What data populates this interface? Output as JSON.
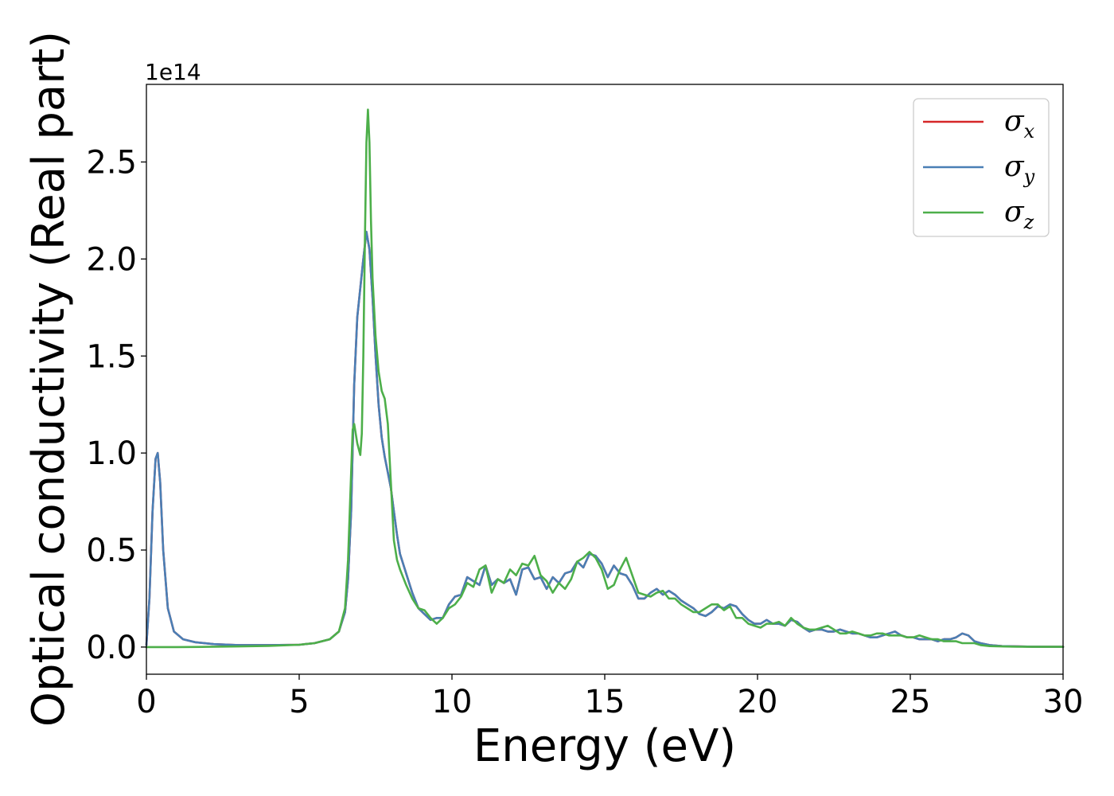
{
  "chart_data": {
    "type": "line",
    "xlabel": "Energy (eV)",
    "ylabel": "Optical conductivity (Real part)",
    "y_offset_label": "1e14",
    "xlim": [
      0,
      30
    ],
    "ylim": [
      -0.14,
      2.9
    ],
    "x_ticks": [
      0,
      5,
      10,
      15,
      20,
      25,
      30
    ],
    "x_tick_labels": [
      "0",
      "5",
      "10",
      "15",
      "20",
      "25",
      "30"
    ],
    "y_ticks": [
      0.0,
      0.5,
      1.0,
      1.5,
      2.0,
      2.5
    ],
    "y_tick_labels": [
      "0.0",
      "0.5",
      "1.0",
      "1.5",
      "2.0",
      "2.5"
    ],
    "grid": false,
    "legend_position": "top-right",
    "series": [
      {
        "name": "σx",
        "name_base": "σ",
        "name_sub": "x",
        "color": "#d62728",
        "x": [
          0,
          0.1,
          0.2,
          0.3,
          0.37,
          0.45,
          0.55,
          0.7,
          0.9,
          1.2,
          1.6,
          2.2,
          3,
          4,
          5,
          5.5,
          6,
          6.3,
          6.5,
          6.6,
          6.7,
          6.8,
          6.9,
          7.0,
          7.1,
          7.2,
          7.3,
          7.4,
          7.5,
          7.6,
          7.7,
          7.8,
          7.9,
          8.0,
          8.1,
          8.2,
          8.3,
          8.5,
          8.7,
          8.9,
          9.1,
          9.3,
          9.5,
          9.7,
          9.9,
          10.1,
          10.3,
          10.5,
          10.7,
          10.9,
          11.1,
          11.3,
          11.5,
          11.7,
          11.9,
          12.1,
          12.3,
          12.5,
          12.7,
          12.9,
          13.1,
          13.3,
          13.5,
          13.7,
          13.9,
          14.1,
          14.3,
          14.5,
          14.7,
          14.9,
          15.1,
          15.3,
          15.5,
          15.7,
          15.9,
          16.1,
          16.3,
          16.5,
          16.7,
          16.9,
          17.1,
          17.3,
          17.5,
          17.7,
          17.9,
          18.1,
          18.3,
          18.5,
          18.7,
          18.9,
          19.1,
          19.3,
          19.5,
          19.7,
          19.9,
          20.1,
          20.3,
          20.5,
          20.7,
          20.9,
          21.1,
          21.3,
          21.5,
          21.7,
          21.9,
          22.1,
          22.3,
          22.5,
          22.7,
          22.9,
          23.1,
          23.3,
          23.5,
          23.7,
          23.9,
          24.1,
          24.3,
          24.5,
          24.7,
          24.9,
          25.1,
          25.3,
          25.5,
          25.7,
          25.9,
          26.1,
          26.3,
          26.5,
          26.7,
          26.9,
          27.1,
          27.3,
          27.6,
          28,
          28.5,
          29,
          30
        ],
        "values": [
          0.01,
          0.25,
          0.7,
          0.97,
          1.0,
          0.85,
          0.5,
          0.2,
          0.08,
          0.04,
          0.025,
          0.015,
          0.01,
          0.01,
          0.012,
          0.02,
          0.04,
          0.08,
          0.18,
          0.35,
          0.7,
          1.35,
          1.7,
          1.85,
          2.0,
          2.14,
          2.05,
          1.8,
          1.5,
          1.25,
          1.08,
          0.98,
          0.9,
          0.82,
          0.7,
          0.58,
          0.48,
          0.38,
          0.28,
          0.2,
          0.17,
          0.14,
          0.15,
          0.15,
          0.22,
          0.26,
          0.27,
          0.36,
          0.34,
          0.32,
          0.42,
          0.32,
          0.35,
          0.33,
          0.35,
          0.27,
          0.4,
          0.41,
          0.35,
          0.36,
          0.3,
          0.36,
          0.33,
          0.38,
          0.39,
          0.44,
          0.41,
          0.48,
          0.47,
          0.43,
          0.36,
          0.42,
          0.38,
          0.37,
          0.32,
          0.25,
          0.25,
          0.28,
          0.3,
          0.27,
          0.29,
          0.27,
          0.24,
          0.22,
          0.2,
          0.17,
          0.16,
          0.18,
          0.21,
          0.2,
          0.22,
          0.21,
          0.17,
          0.14,
          0.12,
          0.12,
          0.14,
          0.12,
          0.12,
          0.11,
          0.14,
          0.13,
          0.1,
          0.08,
          0.09,
          0.09,
          0.08,
          0.08,
          0.09,
          0.08,
          0.07,
          0.07,
          0.06,
          0.05,
          0.05,
          0.06,
          0.07,
          0.08,
          0.06,
          0.05,
          0.05,
          0.04,
          0.04,
          0.04,
          0.03,
          0.04,
          0.04,
          0.05,
          0.07,
          0.06,
          0.03,
          0.02,
          0.01,
          0.005,
          0.003,
          0.002,
          0.001
        ]
      },
      {
        "name": "σy",
        "name_base": "σ",
        "name_sub": "y",
        "color": "#4a7fb5",
        "x": [
          0,
          0.1,
          0.2,
          0.3,
          0.37,
          0.45,
          0.55,
          0.7,
          0.9,
          1.2,
          1.6,
          2.2,
          3,
          4,
          5,
          5.5,
          6,
          6.3,
          6.5,
          6.6,
          6.7,
          6.8,
          6.9,
          7.0,
          7.1,
          7.2,
          7.3,
          7.4,
          7.5,
          7.6,
          7.7,
          7.8,
          7.9,
          8.0,
          8.1,
          8.2,
          8.3,
          8.5,
          8.7,
          8.9,
          9.1,
          9.3,
          9.5,
          9.7,
          9.9,
          10.1,
          10.3,
          10.5,
          10.7,
          10.9,
          11.1,
          11.3,
          11.5,
          11.7,
          11.9,
          12.1,
          12.3,
          12.5,
          12.7,
          12.9,
          13.1,
          13.3,
          13.5,
          13.7,
          13.9,
          14.1,
          14.3,
          14.5,
          14.7,
          14.9,
          15.1,
          15.3,
          15.5,
          15.7,
          15.9,
          16.1,
          16.3,
          16.5,
          16.7,
          16.9,
          17.1,
          17.3,
          17.5,
          17.7,
          17.9,
          18.1,
          18.3,
          18.5,
          18.7,
          18.9,
          19.1,
          19.3,
          19.5,
          19.7,
          19.9,
          20.1,
          20.3,
          20.5,
          20.7,
          20.9,
          21.1,
          21.3,
          21.5,
          21.7,
          21.9,
          22.1,
          22.3,
          22.5,
          22.7,
          22.9,
          23.1,
          23.3,
          23.5,
          23.7,
          23.9,
          24.1,
          24.3,
          24.5,
          24.7,
          24.9,
          25.1,
          25.3,
          25.5,
          25.7,
          25.9,
          26.1,
          26.3,
          26.5,
          26.7,
          26.9,
          27.1,
          27.3,
          27.6,
          28,
          28.5,
          29,
          30
        ],
        "values": [
          0.01,
          0.25,
          0.7,
          0.97,
          1.0,
          0.85,
          0.5,
          0.2,
          0.08,
          0.04,
          0.025,
          0.015,
          0.01,
          0.01,
          0.012,
          0.02,
          0.04,
          0.08,
          0.18,
          0.35,
          0.7,
          1.35,
          1.7,
          1.85,
          2.0,
          2.14,
          2.05,
          1.8,
          1.5,
          1.25,
          1.08,
          0.98,
          0.9,
          0.82,
          0.7,
          0.58,
          0.48,
          0.38,
          0.28,
          0.2,
          0.17,
          0.14,
          0.15,
          0.15,
          0.22,
          0.26,
          0.27,
          0.36,
          0.34,
          0.32,
          0.42,
          0.32,
          0.35,
          0.33,
          0.35,
          0.27,
          0.4,
          0.41,
          0.35,
          0.36,
          0.3,
          0.36,
          0.33,
          0.38,
          0.39,
          0.44,
          0.41,
          0.48,
          0.47,
          0.43,
          0.36,
          0.42,
          0.38,
          0.37,
          0.32,
          0.25,
          0.25,
          0.28,
          0.3,
          0.27,
          0.29,
          0.27,
          0.24,
          0.22,
          0.2,
          0.17,
          0.16,
          0.18,
          0.21,
          0.2,
          0.22,
          0.21,
          0.17,
          0.14,
          0.12,
          0.12,
          0.14,
          0.12,
          0.12,
          0.11,
          0.14,
          0.13,
          0.1,
          0.08,
          0.09,
          0.09,
          0.08,
          0.08,
          0.09,
          0.08,
          0.07,
          0.07,
          0.06,
          0.05,
          0.05,
          0.06,
          0.07,
          0.08,
          0.06,
          0.05,
          0.05,
          0.04,
          0.04,
          0.04,
          0.03,
          0.04,
          0.04,
          0.05,
          0.07,
          0.06,
          0.03,
          0.02,
          0.01,
          0.005,
          0.003,
          0.002,
          0.001
        ]
      },
      {
        "name": "σz",
        "name_base": "σ",
        "name_sub": "z",
        "color": "#4daf4a",
        "x": [
          0,
          1,
          2,
          3,
          4,
          5,
          5.5,
          6,
          6.3,
          6.5,
          6.6,
          6.7,
          6.75,
          6.8,
          6.9,
          7.0,
          7.05,
          7.1,
          7.15,
          7.2,
          7.25,
          7.3,
          7.35,
          7.4,
          7.5,
          7.6,
          7.7,
          7.8,
          7.9,
          8.0,
          8.1,
          8.2,
          8.3,
          8.5,
          8.7,
          8.9,
          9.1,
          9.3,
          9.5,
          9.7,
          9.9,
          10.1,
          10.3,
          10.5,
          10.7,
          10.9,
          11.1,
          11.3,
          11.5,
          11.7,
          11.9,
          12.1,
          12.3,
          12.5,
          12.7,
          12.9,
          13.1,
          13.3,
          13.5,
          13.7,
          13.9,
          14.1,
          14.3,
          14.5,
          14.7,
          14.9,
          15.1,
          15.3,
          15.5,
          15.7,
          15.9,
          16.1,
          16.3,
          16.5,
          16.7,
          16.9,
          17.1,
          17.3,
          17.5,
          17.7,
          17.9,
          18.1,
          18.3,
          18.5,
          18.7,
          18.9,
          19.1,
          19.3,
          19.5,
          19.7,
          19.9,
          20.1,
          20.3,
          20.5,
          20.7,
          20.9,
          21.1,
          21.3,
          21.5,
          21.7,
          21.9,
          22.1,
          22.3,
          22.5,
          22.7,
          22.9,
          23.1,
          23.3,
          23.5,
          23.7,
          23.9,
          24.1,
          24.3,
          24.5,
          24.7,
          24.9,
          25.1,
          25.3,
          25.5,
          25.7,
          25.9,
          26.1,
          26.3,
          26.5,
          26.7,
          26.9,
          27.1,
          27.3,
          27.6,
          28,
          28.5,
          29,
          30
        ],
        "values": [
          0.0,
          0.0,
          0.001,
          0.003,
          0.006,
          0.012,
          0.02,
          0.04,
          0.08,
          0.2,
          0.45,
          0.9,
          1.12,
          1.15,
          1.05,
          0.99,
          1.1,
          1.5,
          2.1,
          2.6,
          2.77,
          2.6,
          2.2,
          1.9,
          1.6,
          1.42,
          1.32,
          1.28,
          1.15,
          0.85,
          0.55,
          0.45,
          0.4,
          0.32,
          0.25,
          0.2,
          0.19,
          0.15,
          0.12,
          0.15,
          0.2,
          0.22,
          0.26,
          0.33,
          0.31,
          0.4,
          0.42,
          0.28,
          0.35,
          0.33,
          0.4,
          0.37,
          0.43,
          0.42,
          0.47,
          0.37,
          0.34,
          0.28,
          0.33,
          0.3,
          0.35,
          0.44,
          0.46,
          0.49,
          0.46,
          0.4,
          0.3,
          0.32,
          0.4,
          0.46,
          0.37,
          0.28,
          0.27,
          0.26,
          0.28,
          0.29,
          0.25,
          0.25,
          0.22,
          0.2,
          0.18,
          0.18,
          0.2,
          0.22,
          0.22,
          0.19,
          0.21,
          0.15,
          0.15,
          0.12,
          0.11,
          0.1,
          0.12,
          0.12,
          0.13,
          0.11,
          0.15,
          0.12,
          0.1,
          0.09,
          0.09,
          0.1,
          0.11,
          0.09,
          0.07,
          0.07,
          0.08,
          0.07,
          0.06,
          0.06,
          0.07,
          0.07,
          0.06,
          0.06,
          0.06,
          0.05,
          0.05,
          0.06,
          0.05,
          0.04,
          0.04,
          0.03,
          0.03,
          0.03,
          0.02,
          0.02,
          0.02,
          0.01,
          0.005,
          0.003,
          0.002,
          0.001,
          0.001
        ]
      }
    ]
  }
}
